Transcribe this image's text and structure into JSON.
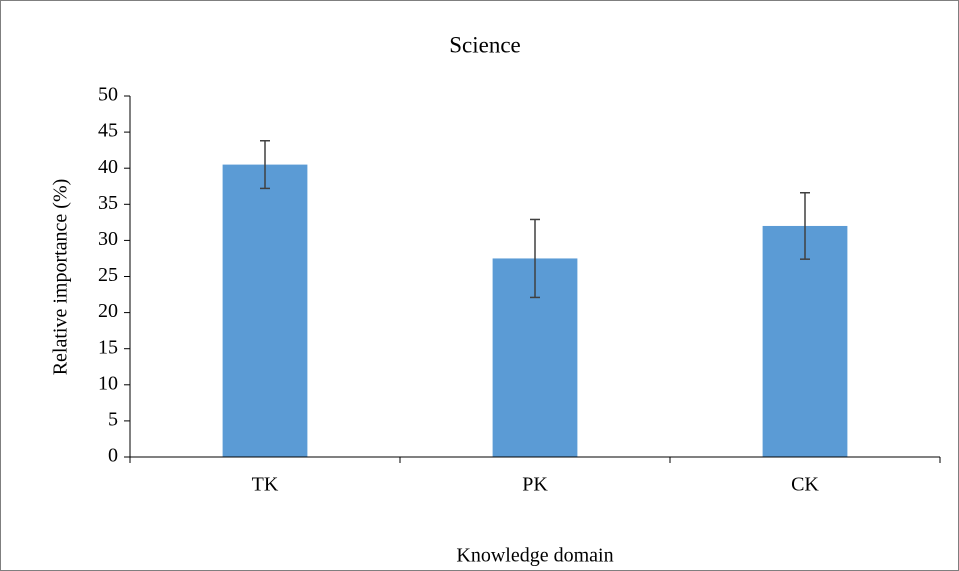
{
  "chart_data": {
    "type": "bar",
    "title": "Science",
    "x_label": "Knowledge domain",
    "y_label": "Relative importance (%)",
    "categories": [
      "TK",
      "PK",
      "CK"
    ],
    "values": [
      40.5,
      27.5,
      32.0
    ],
    "errors": [
      3.3,
      5.4,
      4.6
    ],
    "color": "#5b9bd5",
    "error_color": "#404040",
    "ylim": [
      0,
      50
    ],
    "yticks": [
      0,
      5,
      10,
      15,
      20,
      25,
      30,
      35,
      40,
      45,
      50
    ],
    "grid": false
  }
}
